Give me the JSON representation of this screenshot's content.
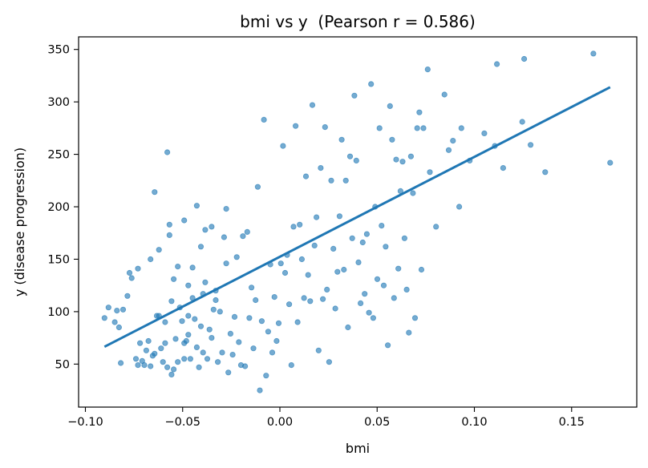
{
  "chart_data": {
    "type": "scatter",
    "title": "bmi vs y  (Pearson r = 0.586)",
    "xlabel": "bmi",
    "ylabel": "y (disease progression)",
    "xlim": [
      -0.1035,
      0.1835
    ],
    "ylim": [
      9,
      362
    ],
    "xticks": [
      -0.1,
      -0.05,
      0.0,
      0.05,
      0.1,
      0.15
    ],
    "xtick_labels": [
      "−0.10",
      "−0.05",
      "0.00",
      "0.05",
      "0.10",
      "0.15"
    ],
    "yticks": [
      50,
      100,
      150,
      200,
      250,
      300,
      350
    ],
    "ytick_labels": [
      "50",
      "100",
      "150",
      "200",
      "250",
      "300",
      "350"
    ],
    "grid": false,
    "marker_color": "#1f77b4",
    "line_color": "#1f77b4",
    "points": [
      [
        -0.0902,
        94
      ],
      [
        -0.0881,
        104
      ],
      [
        -0.0849,
        90
      ],
      [
        -0.0838,
        101
      ],
      [
        -0.0827,
        85
      ],
      [
        -0.0818,
        51
      ],
      [
        -0.0806,
        102
      ],
      [
        -0.0784,
        115
      ],
      [
        -0.0773,
        137
      ],
      [
        -0.0762,
        132
      ],
      [
        -0.074,
        55
      ],
      [
        -0.073,
        141
      ],
      [
        -0.073,
        49
      ],
      [
        -0.0719,
        70
      ],
      [
        -0.0708,
        53
      ],
      [
        -0.0697,
        49
      ],
      [
        -0.0687,
        63
      ],
      [
        -0.0676,
        72
      ],
      [
        -0.0665,
        48
      ],
      [
        -0.0665,
        150
      ],
      [
        -0.0654,
        58
      ],
      [
        -0.0644,
        60
      ],
      [
        -0.0644,
        214
      ],
      [
        -0.0633,
        96
      ],
      [
        -0.0622,
        96
      ],
      [
        -0.0622,
        159
      ],
      [
        -0.0611,
        65
      ],
      [
        -0.0601,
        52
      ],
      [
        -0.059,
        90
      ],
      [
        -0.059,
        70
      ],
      [
        -0.0579,
        47
      ],
      [
        -0.0579,
        252
      ],
      [
        -0.0568,
        173
      ],
      [
        -0.0568,
        183
      ],
      [
        -0.0557,
        110
      ],
      [
        -0.0557,
        40
      ],
      [
        -0.0546,
        45
      ],
      [
        -0.0546,
        131
      ],
      [
        -0.0536,
        74
      ],
      [
        -0.0525,
        52
      ],
      [
        -0.0525,
        143
      ],
      [
        -0.0514,
        104
      ],
      [
        -0.0503,
        91
      ],
      [
        -0.0492,
        55
      ],
      [
        -0.0492,
        187
      ],
      [
        -0.0492,
        70
      ],
      [
        -0.0481,
        72
      ],
      [
        -0.0471,
        96
      ],
      [
        -0.0471,
        78
      ],
      [
        -0.0471,
        125
      ],
      [
        -0.046,
        55
      ],
      [
        -0.0449,
        113
      ],
      [
        -0.0449,
        142
      ],
      [
        -0.0438,
        93
      ],
      [
        -0.0427,
        201
      ],
      [
        -0.0427,
        66
      ],
      [
        -0.0416,
        47
      ],
      [
        -0.0406,
        86
      ],
      [
        -0.0406,
        162
      ],
      [
        -0.0395,
        61
      ],
      [
        -0.0395,
        117
      ],
      [
        -0.0384,
        178
      ],
      [
        -0.0384,
        128
      ],
      [
        -0.0373,
        55
      ],
      [
        -0.0362,
        83
      ],
      [
        -0.0351,
        181
      ],
      [
        -0.0351,
        75
      ],
      [
        -0.0341,
        102
      ],
      [
        -0.033,
        111
      ],
      [
        -0.033,
        120
      ],
      [
        -0.0319,
        52
      ],
      [
        -0.0308,
        100
      ],
      [
        -0.0297,
        61
      ],
      [
        -0.0287,
        171
      ],
      [
        -0.0276,
        198
      ],
      [
        -0.0276,
        146
      ],
      [
        -0.0265,
        42
      ],
      [
        -0.0254,
        79
      ],
      [
        -0.0243,
        59
      ],
      [
        -0.0233,
        95
      ],
      [
        -0.0222,
        152
      ],
      [
        -0.0211,
        71
      ],
      [
        -0.02,
        49
      ],
      [
        -0.019,
        172
      ],
      [
        -0.0179,
        48
      ],
      [
        -0.0168,
        176
      ],
      [
        -0.0157,
        94
      ],
      [
        -0.0146,
        123
      ],
      [
        -0.0136,
        65
      ],
      [
        -0.0125,
        111
      ],
      [
        -0.0114,
        219
      ],
      [
        -0.0103,
        25
      ],
      [
        -0.0093,
        91
      ],
      [
        -0.0082,
        283
      ],
      [
        -0.0071,
        39
      ],
      [
        -0.006,
        81
      ],
      [
        -0.0049,
        145
      ],
      [
        -0.0039,
        61
      ],
      [
        -0.0028,
        114
      ],
      [
        -0.0017,
        72
      ],
      [
        -0.0006,
        89
      ],
      [
        0.0005,
        146
      ],
      [
        0.0016,
        258
      ],
      [
        0.0027,
        137
      ],
      [
        0.0037,
        154
      ],
      [
        0.0048,
        107
      ],
      [
        0.0059,
        49
      ],
      [
        0.007,
        181
      ],
      [
        0.0081,
        277
      ],
      [
        0.0091,
        90
      ],
      [
        0.0102,
        183
      ],
      [
        0.0113,
        150
      ],
      [
        0.0124,
        113
      ],
      [
        0.0134,
        229
      ],
      [
        0.0145,
        135
      ],
      [
        0.0156,
        110
      ],
      [
        0.0167,
        297
      ],
      [
        0.0178,
        163
      ],
      [
        0.0188,
        190
      ],
      [
        0.0199,
        63
      ],
      [
        0.021,
        237
      ],
      [
        0.0221,
        112
      ],
      [
        0.0232,
        276
      ],
      [
        0.0242,
        121
      ],
      [
        0.0253,
        52
      ],
      [
        0.0264,
        225
      ],
      [
        0.0275,
        160
      ],
      [
        0.0285,
        103
      ],
      [
        0.0296,
        138
      ],
      [
        0.0307,
        191
      ],
      [
        0.0318,
        264
      ],
      [
        0.0329,
        140
      ],
      [
        0.0339,
        225
      ],
      [
        0.035,
        85
      ],
      [
        0.0361,
        248
      ],
      [
        0.0372,
        170
      ],
      [
        0.0383,
        306
      ],
      [
        0.0393,
        244
      ],
      [
        0.0404,
        147
      ],
      [
        0.0415,
        108
      ],
      [
        0.0426,
        166
      ],
      [
        0.0436,
        117
      ],
      [
        0.0447,
        174
      ],
      [
        0.0458,
        99
      ],
      [
        0.0469,
        317
      ],
      [
        0.048,
        94
      ],
      [
        0.049,
        200
      ],
      [
        0.0501,
        131
      ],
      [
        0.0512,
        275
      ],
      [
        0.0523,
        182
      ],
      [
        0.0534,
        125
      ],
      [
        0.0544,
        162
      ],
      [
        0.0555,
        68
      ],
      [
        0.0566,
        296
      ],
      [
        0.0577,
        264
      ],
      [
        0.0587,
        113
      ],
      [
        0.0598,
        245
      ],
      [
        0.0609,
        141
      ],
      [
        0.062,
        215
      ],
      [
        0.0631,
        243
      ],
      [
        0.0641,
        170
      ],
      [
        0.0652,
        121
      ],
      [
        0.0663,
        80
      ],
      [
        0.0674,
        248
      ],
      [
        0.0684,
        213
      ],
      [
        0.0695,
        94
      ],
      [
        0.0706,
        275
      ],
      [
        0.0717,
        290
      ],
      [
        0.0728,
        140
      ],
      [
        0.0738,
        275
      ],
      [
        0.076,
        331
      ],
      [
        0.0771,
        233
      ],
      [
        0.0803,
        181
      ],
      [
        0.0846,
        307
      ],
      [
        0.0868,
        254
      ],
      [
        0.089,
        263
      ],
      [
        0.0922,
        200
      ],
      [
        0.0933,
        275
      ],
      [
        0.0976,
        244
      ],
      [
        0.1051,
        270
      ],
      [
        0.1105,
        258
      ],
      [
        0.1116,
        336
      ],
      [
        0.1148,
        237
      ],
      [
        0.1246,
        281
      ],
      [
        0.1256,
        341
      ],
      [
        0.1289,
        259
      ],
      [
        0.1364,
        233
      ],
      [
        0.1612,
        346
      ],
      [
        0.1698,
        242
      ]
    ],
    "fit_line": {
      "x": [
        -0.0902,
        0.1698
      ],
      "y": [
        66.5,
        314.0
      ]
    }
  }
}
